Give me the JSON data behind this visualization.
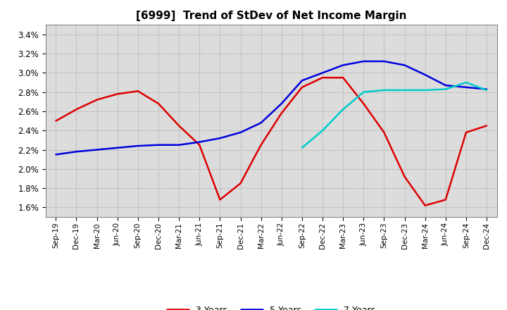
{
  "title": "[6999]  Trend of StDev of Net Income Margin",
  "title_fontsize": 11,
  "background_color": "#ffffff",
  "grid_color": "#999999",
  "plot_bg_color": "#dcdcdc",
  "ylim": [
    0.015,
    0.035
  ],
  "ytick_step": 0.002,
  "x_labels": [
    "Sep-19",
    "Dec-19",
    "Mar-20",
    "Jun-20",
    "Sep-20",
    "Dec-20",
    "Mar-21",
    "Jun-21",
    "Sep-21",
    "Dec-21",
    "Mar-22",
    "Jun-22",
    "Sep-22",
    "Dec-22",
    "Mar-23",
    "Jun-23",
    "Sep-23",
    "Dec-23",
    "Mar-24",
    "Jun-24",
    "Sep-24",
    "Dec-24"
  ],
  "series": {
    "3 Years": {
      "color": "#dd0000",
      "linewidth": 1.8,
      "values": [
        0.025,
        0.0262,
        0.0272,
        0.0278,
        0.0281,
        0.0268,
        0.0245,
        0.0225,
        0.0168,
        0.0185,
        0.0225,
        0.0258,
        0.0285,
        0.0295,
        0.0295,
        0.0268,
        0.0238,
        0.0192,
        0.0162,
        0.0168,
        0.0238,
        0.0245
      ]
    },
    "5 Years": {
      "color": "#0000dd",
      "linewidth": 1.8,
      "values": [
        0.0215,
        0.0218,
        0.022,
        0.0222,
        0.0224,
        0.0225,
        0.0225,
        0.0228,
        0.0232,
        0.0238,
        0.0248,
        0.0268,
        0.0292,
        0.03,
        0.0308,
        0.0312,
        0.0312,
        0.0308,
        0.0298,
        0.0287,
        0.0285,
        0.0283
      ]
    },
    "7 Years": {
      "color": "#00cccc",
      "linewidth": 1.8,
      "values": [
        null,
        null,
        null,
        null,
        null,
        null,
        null,
        null,
        null,
        null,
        null,
        null,
        0.0222,
        0.024,
        0.0262,
        0.028,
        0.0282,
        0.0282,
        0.0282,
        0.0283,
        0.029,
        0.0282
      ]
    },
    "10 Years": {
      "color": "#008800",
      "linewidth": 1.8,
      "values": [
        null,
        null,
        null,
        null,
        null,
        null,
        null,
        null,
        null,
        null,
        null,
        null,
        null,
        null,
        null,
        null,
        null,
        null,
        null,
        null,
        null,
        null
      ]
    }
  },
  "legend_ncol": 4,
  "legend_fontsize": 9,
  "legend_handlelength": 2.5
}
